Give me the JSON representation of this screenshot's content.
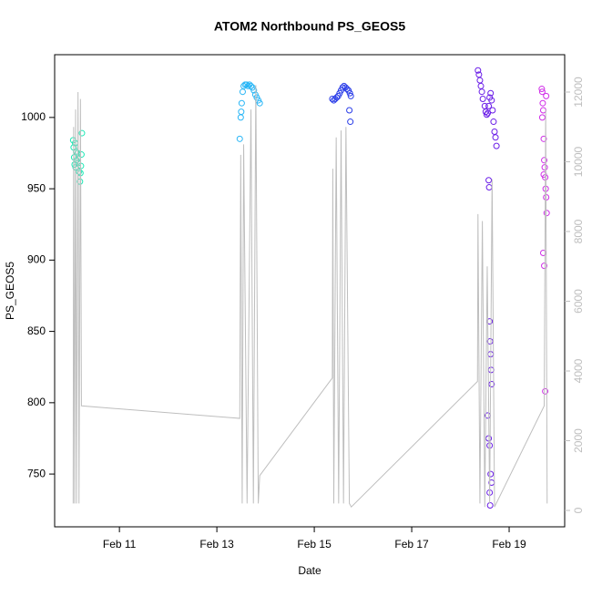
{
  "chart_data": {
    "type": "scatter",
    "title": "ATOM2 Northbound PS_GEOS5",
    "x_label": "Date",
    "y_label": "PS_GEOS5",
    "xlim": [
      9.67,
      20.14
    ],
    "xticks": [
      {
        "value": 11,
        "label": "Feb 11"
      },
      {
        "value": 13,
        "label": "Feb 13"
      },
      {
        "value": 15,
        "label": "Feb 15"
      },
      {
        "value": 17,
        "label": "Feb 17"
      },
      {
        "value": 19,
        "label": "Feb 19"
      }
    ],
    "ylim": [
      713,
      1044
    ],
    "yticks": [
      750,
      800,
      850,
      900,
      950,
      1000
    ],
    "y2lim": [
      -470,
      13072
    ],
    "y2ticks": [
      0,
      2000,
      4000,
      6000,
      8000,
      10000,
      12000
    ],
    "series": [
      {
        "color": "#1de9b6",
        "x": [
          10.05,
          10.06,
          10.07,
          10.08,
          10.1,
          10.12,
          10.14,
          10.15,
          10.17,
          10.19,
          10.2,
          10.21,
          10.22,
          10.23,
          10.09,
          10.11
        ],
        "values": [
          984,
          979,
          972,
          967,
          965,
          970,
          975,
          968,
          962,
          955,
          961,
          966,
          974,
          989,
          982,
          976
        ]
      },
      {
        "color": "#29b6f6",
        "x": [
          13.47,
          13.49,
          13.51,
          13.53,
          13.55,
          13.58,
          13.61,
          13.64,
          13.67,
          13.7,
          13.73,
          13.76,
          13.79,
          13.82,
          13.85,
          13.88,
          13.5
        ],
        "values": [
          985,
          1000,
          1010,
          1018,
          1022,
          1023,
          1023,
          1022,
          1023,
          1022,
          1021,
          1019,
          1016,
          1014,
          1012,
          1010,
          1004
        ]
      },
      {
        "color": "#2a3de8",
        "x": [
          15.37,
          15.4,
          15.43,
          15.46,
          15.49,
          15.52,
          15.55,
          15.58,
          15.61,
          15.64,
          15.67,
          15.7,
          15.73,
          15.75,
          15.74,
          15.72
        ],
        "values": [
          1013,
          1012,
          1013,
          1014,
          1015,
          1017,
          1019,
          1021,
          1022,
          1021,
          1020,
          1019,
          1017,
          1015,
          997,
          1005
        ]
      },
      {
        "color": "#6a1de8",
        "x": [
          18.36,
          18.38,
          18.4,
          18.42,
          18.44,
          18.46,
          18.5,
          18.52,
          18.54,
          18.56,
          18.58,
          18.6,
          18.62,
          18.64,
          18.66,
          18.68,
          18.7,
          18.72,
          18.74,
          18.58,
          18.59,
          18.6,
          18.61,
          18.62,
          18.63,
          18.64,
          18.56,
          18.58,
          18.6,
          18.62,
          18.64,
          18.6,
          18.61
        ],
        "values": [
          1033,
          1030,
          1026,
          1022,
          1018,
          1013,
          1008,
          1004,
          1002,
          1003,
          1008,
          1014,
          1017,
          1012,
          1005,
          997,
          990,
          986,
          980,
          956,
          951,
          857,
          843,
          834,
          823,
          813,
          791,
          775,
          770,
          750,
          744,
          737,
          728
        ]
      },
      {
        "color": "#d02ee8",
        "x": [
          19.67,
          19.68,
          19.69,
          19.7,
          19.71,
          19.72,
          19.73,
          19.74,
          19.75,
          19.76,
          19.77,
          19.7,
          19.72,
          19.74,
          19.76,
          19.68,
          19.71
        ],
        "values": [
          1020,
          1018,
          1010,
          1005,
          985,
          970,
          965,
          958,
          950,
          944,
          933,
          905,
          896,
          808,
          1015,
          1000,
          960
        ]
      },
      {
        "type": "line",
        "axis": "y2",
        "color": "#bebebe",
        "x": [
          10.05,
          10.06,
          10.08,
          10.1,
          10.12,
          10.15,
          10.17,
          10.2,
          10.22,
          13.47,
          13.49,
          13.52,
          13.55,
          13.62,
          13.7,
          13.75,
          13.8,
          13.85,
          13.88,
          15.37,
          15.38,
          15.4,
          15.45,
          15.5,
          15.55,
          15.6,
          15.65,
          15.72,
          15.76,
          18.35,
          18.36,
          18.4,
          18.45,
          18.5,
          18.55,
          18.6,
          18.65,
          18.7,
          19.72,
          19.75,
          19.78
        ],
        "values": [
          200,
          11000,
          200,
          11500,
          200,
          12000,
          200,
          11800,
          3000,
          2640,
          10200,
          200,
          10500,
          200,
          11500,
          200,
          12200,
          200,
          1000,
          3800,
          9800,
          200,
          10700,
          200,
          10900,
          200,
          11000,
          200,
          100,
          3700,
          8500,
          200,
          8300,
          100,
          7000,
          200,
          9500,
          100,
          3000,
          11500,
          200
        ]
      }
    ]
  }
}
